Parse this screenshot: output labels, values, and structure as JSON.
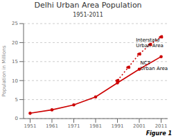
{
  "chart_data": {
    "type": "line",
    "title": "Delhi Urban Area Population",
    "subtitle": "1951-2011",
    "ylabel": "Population in Millions",
    "xlim": [
      1948,
      2014
    ],
    "ylim": [
      0,
      25
    ],
    "xticks": [
      1951,
      1961,
      1971,
      1981,
      1991,
      2001,
      2011
    ],
    "yticks": [
      0,
      5,
      10,
      15,
      20,
      25
    ],
    "grid": true,
    "series": [
      {
        "x": [
          1951,
          1961,
          1971,
          1981,
          1991,
          2001,
          2011
        ],
        "values": [
          1.4,
          2.3,
          3.6,
          5.7,
          9.4,
          13.0,
          16.3
        ],
        "color": "#cc0000",
        "line_style": "solid",
        "marker": "o"
      },
      {
        "x": [
          1991,
          1996,
          2001,
          2006,
          2011
        ],
        "values": [
          10.0,
          13.5,
          17.0,
          19.5,
          21.5
        ],
        "color": "#cc0000",
        "line_style": "dotted",
        "marker": "o"
      }
    ],
    "annotations": [
      {
        "text": "Interstate\nUrban Area",
        "x": 1999.5,
        "y": 19.8
      },
      {
        "text": "NCT\nUrban Area",
        "x": 2001.5,
        "y": 13.8
      },
      {
        "text": "Figure 1"
      }
    ]
  }
}
